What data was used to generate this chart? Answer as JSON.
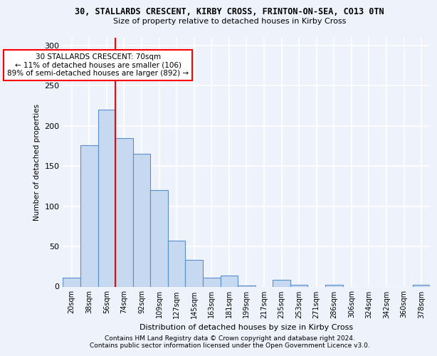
{
  "title1": "30, STALLARDS CRESCENT, KIRBY CROSS, FRINTON-ON-SEA, CO13 0TN",
  "title2": "Size of property relative to detached houses in Kirby Cross",
  "xlabel": "Distribution of detached houses by size in Kirby Cross",
  "ylabel": "Number of detached properties",
  "categories": [
    "20sqm",
    "38sqm",
    "56sqm",
    "74sqm",
    "92sqm",
    "109sqm",
    "127sqm",
    "145sqm",
    "163sqm",
    "181sqm",
    "199sqm",
    "217sqm",
    "235sqm",
    "253sqm",
    "271sqm",
    "286sqm",
    "306sqm",
    "324sqm",
    "342sqm",
    "360sqm",
    "378sqm"
  ],
  "values": [
    11,
    176,
    220,
    185,
    165,
    120,
    57,
    33,
    11,
    14,
    1,
    0,
    8,
    2,
    0,
    2,
    0,
    0,
    0,
    0,
    2
  ],
  "bar_color": "#c6d9f0",
  "bar_edge_color": "#5b8fcc",
  "vline_color": "red",
  "annotation_text": "30 STALLARDS CRESCENT: 70sqm\n← 11% of detached houses are smaller (106)\n89% of semi-detached houses are larger (892) →",
  "annotation_box_color": "white",
  "annotation_box_edge": "red",
  "footer1": "Contains HM Land Registry data © Crown copyright and database right 2024.",
  "footer2": "Contains public sector information licensed under the Open Government Licence v3.0.",
  "ylim": [
    0,
    310
  ],
  "background_color": "#eef2fb",
  "grid_color": "white",
  "yticks": [
    0,
    50,
    100,
    150,
    200,
    250,
    300
  ]
}
